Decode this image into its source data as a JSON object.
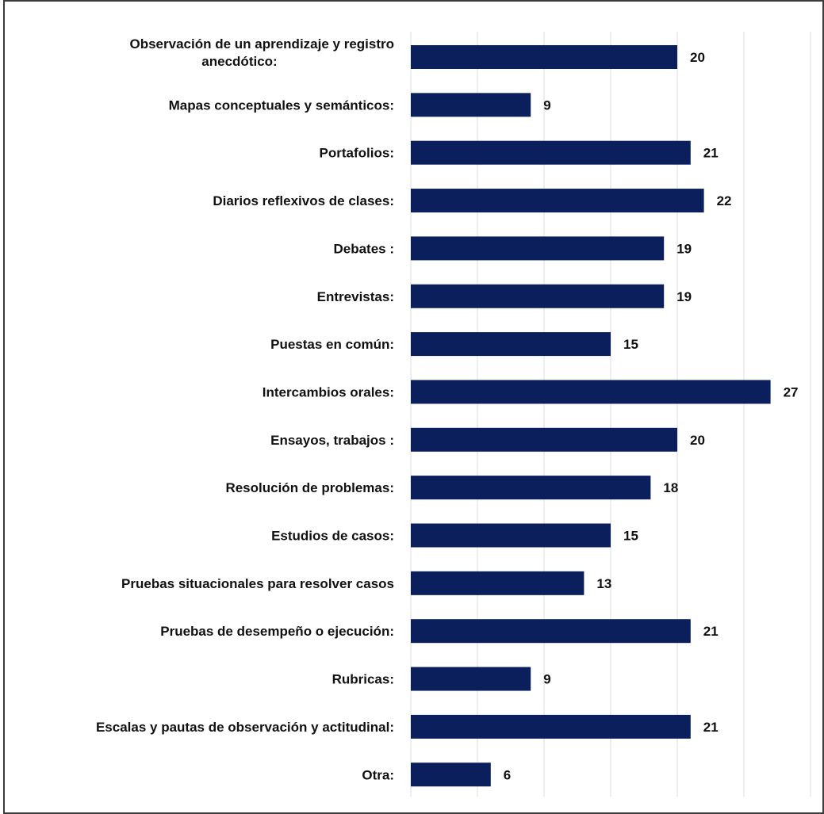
{
  "chart_data": {
    "type": "bar",
    "orientation": "horizontal",
    "title": "",
    "xlabel": "",
    "ylabel": "",
    "xlim": [
      0,
      30
    ],
    "grid": true,
    "bar_color": "#0b1f5c",
    "categories": [
      [
        "Observación de un aprendizaje y registro",
        "anecdótico:"
      ],
      [
        "Mapas conceptuales y semánticos:"
      ],
      [
        "Portafolios:"
      ],
      [
        "Diarios reflexivos de clases:"
      ],
      [
        "Debates :"
      ],
      [
        "Entrevistas:"
      ],
      [
        "Puestas en común:"
      ],
      [
        "Intercambios orales:"
      ],
      [
        "Ensayos, trabajos :"
      ],
      [
        "Resolución de problemas:"
      ],
      [
        "Estudios de casos:"
      ],
      [
        "Pruebas situacionales para resolver casos"
      ],
      [
        "Pruebas de desempeño o ejecución:"
      ],
      [
        "Rubricas:"
      ],
      [
        "Escalas y pautas de observación  y actitudinal:"
      ],
      [
        "Otra:"
      ]
    ],
    "values": [
      20,
      9,
      21,
      22,
      19,
      19,
      15,
      27,
      20,
      18,
      15,
      13,
      21,
      9,
      21,
      6
    ]
  }
}
